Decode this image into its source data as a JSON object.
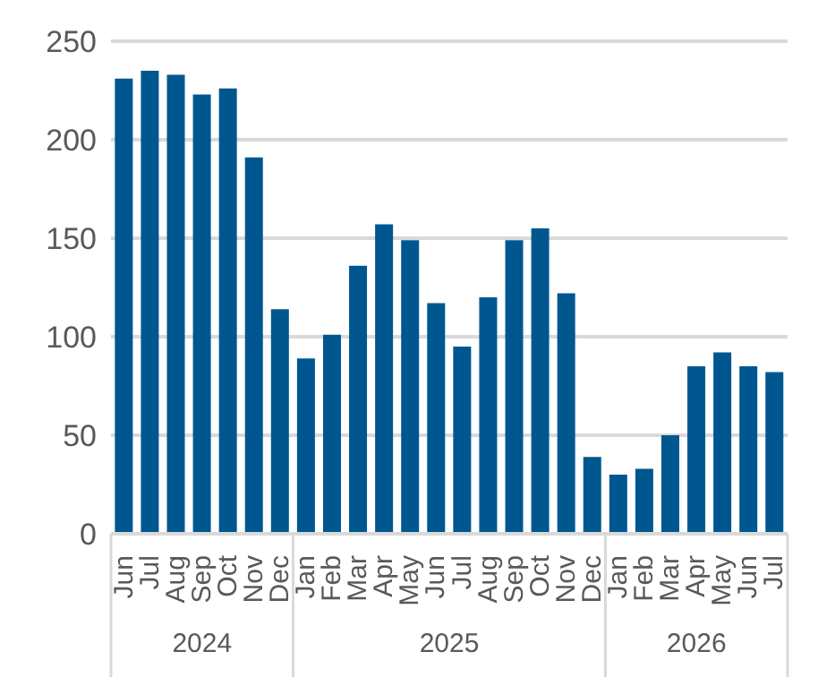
{
  "chart_data": {
    "type": "bar",
    "categories": [
      "Jun",
      "Jul",
      "Aug",
      "Sep",
      "Oct",
      "Nov",
      "Dec",
      "Jan",
      "Feb",
      "Mar",
      "Apr",
      "May",
      "Jun",
      "Jul",
      "Aug",
      "Sep",
      "Oct",
      "Nov",
      "Dec",
      "Jan",
      "Feb",
      "Mar",
      "Apr",
      "May",
      "Jun",
      "Jul"
    ],
    "annotations": [
      "2024",
      "2025",
      "2026"
    ],
    "values": [
      231,
      235,
      233,
      223,
      226,
      191,
      114,
      89,
      101,
      136,
      157,
      149,
      117,
      95,
      120,
      149,
      155,
      122,
      39,
      30,
      33,
      50,
      85,
      92,
      85,
      82
    ],
    "color": "#00578f",
    "ylim": [
      0,
      250
    ],
    "yticks": [
      0,
      50,
      100,
      150,
      200,
      250
    ],
    "grid": "y",
    "legend": false
  }
}
